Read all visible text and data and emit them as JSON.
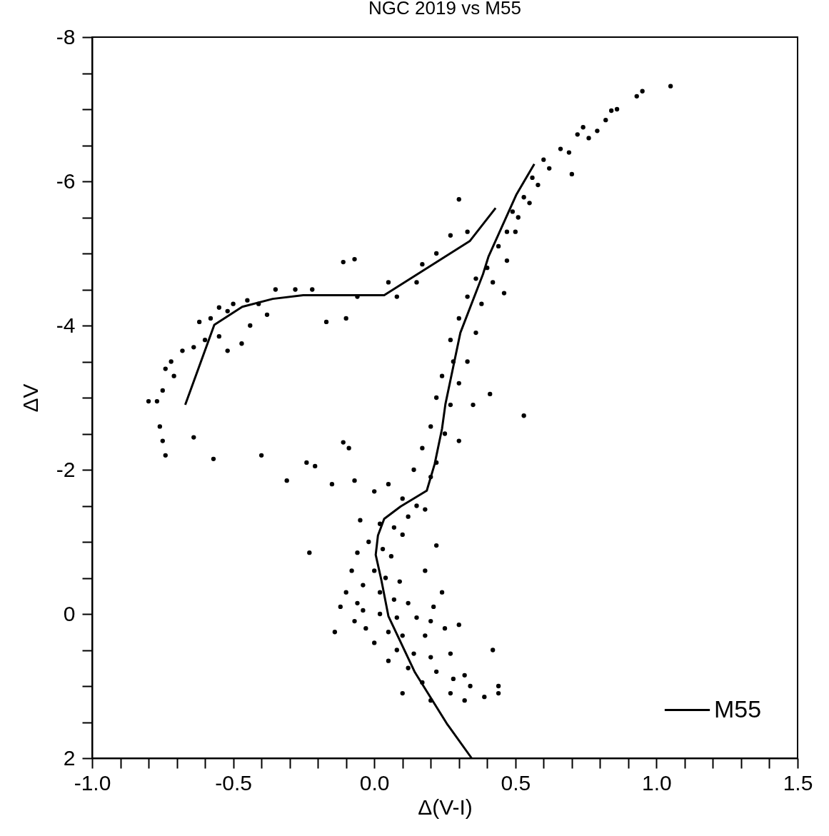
{
  "chart_data": {
    "type": "scatter",
    "title": "NGC 2019 vs M55",
    "xlabel": "Δ(V-I)",
    "ylabel": "ΔV",
    "xlim": [
      -1.0,
      1.5
    ],
    "ylim": [
      2,
      -8
    ],
    "xticks": [
      {
        "value": -1.0,
        "label": "-1.0"
      },
      {
        "value": -0.9,
        "label": null
      },
      {
        "value": -0.8,
        "label": null
      },
      {
        "value": -0.7,
        "label": null
      },
      {
        "value": -0.6,
        "label": null
      },
      {
        "value": -0.5,
        "label": "-0.5"
      },
      {
        "value": -0.4,
        "label": null
      },
      {
        "value": -0.3,
        "label": null
      },
      {
        "value": -0.2,
        "label": null
      },
      {
        "value": -0.1,
        "label": null
      },
      {
        "value": 0,
        "label": "0.0"
      },
      {
        "value": 0.1,
        "label": null
      },
      {
        "value": 0.2,
        "label": null
      },
      {
        "value": 0.3,
        "label": null
      },
      {
        "value": 0.4,
        "label": null
      },
      {
        "value": 0.5,
        "label": "0.5"
      },
      {
        "value": 0.6,
        "label": null
      },
      {
        "value": 0.7,
        "label": null
      },
      {
        "value": 0.8,
        "label": null
      },
      {
        "value": 0.9,
        "label": null
      },
      {
        "value": 1.0,
        "label": "1.0"
      },
      {
        "value": 1.1,
        "label": null
      },
      {
        "value": 1.2,
        "label": null
      },
      {
        "value": 1.3,
        "label": null
      },
      {
        "value": 1.4,
        "label": null
      },
      {
        "value": 1.5,
        "label": "1.5"
      }
    ],
    "yticks": [
      -8,
      {
        "value": -7.5,
        "label": null
      },
      {
        "value": -7,
        "label": null
      },
      {
        "value": -6.5,
        "label": null
      },
      -6,
      {
        "value": -5.5,
        "label": null
      },
      {
        "value": -5,
        "label": null
      },
      {
        "value": -4.5,
        "label": null
      },
      -4,
      {
        "value": -3.5,
        "label": null
      },
      {
        "value": -3,
        "label": null
      },
      {
        "value": -2.5,
        "label": null
      },
      -2,
      {
        "value": -1.5,
        "label": null
      },
      {
        "value": -1,
        "label": null
      },
      {
        "value": -0.5,
        "label": null
      },
      0,
      {
        "value": 0.5,
        "label": null
      },
      {
        "value": 1,
        "label": null
      },
      {
        "value": 1.5,
        "label": null
      },
      2
    ],
    "line_style": "solid",
    "legend": "bottom right",
    "series": [
      {
        "marker": "circle",
        "color": "#000000",
        "x": [
          1.05,
          0.95,
          0.93,
          0.86,
          0.84,
          0.82,
          0.79,
          0.74,
          0.76,
          0.72,
          0.66,
          0.69,
          0.7,
          0.6,
          0.62,
          0.56,
          0.58,
          0.53,
          0.55,
          0.49,
          0.51,
          0.47,
          0.5,
          0.44,
          0.47,
          0.42,
          0.46,
          0.4,
          0.36,
          0.38,
          0.33,
          0.3,
          0.36,
          0.27,
          0.33,
          0.28,
          0.24,
          0.3,
          0.22,
          0.35,
          0.27,
          0.2,
          0.25,
          0.3,
          0.17,
          0.22,
          0.14,
          0.2,
          0.53,
          0.41,
          0.3,
          0.33,
          0.27,
          0.22,
          0.17,
          0.15,
          0.08,
          0.05,
          -0.07,
          -0.11,
          -0.06,
          -0.1,
          -0.17,
          -0.22,
          -0.28,
          -0.35,
          -0.41,
          -0.45,
          -0.38,
          -0.5,
          -0.52,
          -0.55,
          -0.58,
          -0.62,
          -0.6,
          -0.64,
          -0.68,
          -0.72,
          -0.74,
          -0.71,
          -0.75,
          -0.77,
          -0.8,
          -0.76,
          -0.75,
          -0.74,
          -0.64,
          -0.57,
          -0.4,
          -0.52,
          -0.55,
          -0.47,
          -0.44,
          -0.31,
          -0.24,
          -0.21,
          -0.15,
          -0.23,
          -0.11,
          -0.09,
          -0.07,
          0.0,
          0.05,
          0.1,
          0.15,
          0.18,
          0.12,
          -0.05,
          0.02,
          0.07,
          0.1,
          -0.02,
          0.03,
          0.06,
          -0.06,
          -0.08,
          0.0,
          0.04,
          0.09,
          -0.04,
          -0.1,
          0.02,
          0.07,
          0.12,
          -0.12,
          -0.04,
          0.02,
          0.08,
          0.15,
          0.2,
          -0.07,
          -0.03,
          0.05,
          0.1,
          0.18,
          0.25,
          0.3,
          0.0,
          0.08,
          0.14,
          0.2,
          0.27,
          0.05,
          0.12,
          0.22,
          0.28,
          0.32,
          0.34,
          0.17,
          0.1,
          0.2,
          0.27,
          0.32,
          0.42,
          0.44,
          0.44,
          0.39,
          0.21,
          0.24,
          0.18,
          0.22,
          -0.06,
          -0.14
        ],
        "values": [
          -7.32,
          -7.25,
          -7.18,
          -7.0,
          -6.98,
          -6.85,
          -6.7,
          -6.75,
          -6.6,
          -6.65,
          -6.45,
          -6.4,
          -6.1,
          -6.3,
          -6.18,
          -6.05,
          -5.95,
          -5.78,
          -5.7,
          -5.58,
          -5.5,
          -5.3,
          -5.3,
          -5.1,
          -4.9,
          -4.6,
          -4.45,
          -4.8,
          -4.65,
          -4.3,
          -4.4,
          -4.1,
          -3.9,
          -3.8,
          -3.5,
          -3.5,
          -3.3,
          -3.2,
          -3.0,
          -2.9,
          -2.9,
          -2.6,
          -2.5,
          -2.4,
          -2.3,
          -2.1,
          -2.0,
          -1.9,
          -2.75,
          -3.05,
          -5.75,
          -5.3,
          -5.25,
          -5.0,
          -4.85,
          -4.6,
          -4.4,
          -4.6,
          -4.92,
          -4.88,
          -4.4,
          -4.1,
          -4.05,
          -4.5,
          -4.5,
          -4.5,
          -4.3,
          -4.35,
          -4.15,
          -4.3,
          -4.2,
          -4.25,
          -4.1,
          -4.05,
          -3.8,
          -3.7,
          -3.65,
          -3.5,
          -3.4,
          -3.3,
          -3.1,
          -2.95,
          -2.95,
          -2.6,
          -2.4,
          -2.2,
          -2.45,
          -2.15,
          -2.2,
          -3.65,
          -3.85,
          -3.75,
          -4.0,
          -1.85,
          -2.1,
          -2.05,
          -1.8,
          -0.85,
          -2.38,
          -2.3,
          -1.85,
          -1.7,
          -1.8,
          -1.6,
          -1.5,
          -1.45,
          -1.35,
          -1.3,
          -1.25,
          -1.2,
          -1.1,
          -1.0,
          -0.9,
          -0.8,
          -0.85,
          -0.6,
          -0.6,
          -0.5,
          -0.45,
          -0.4,
          -0.3,
          -0.3,
          -0.2,
          -0.15,
          -0.1,
          -0.05,
          0.0,
          0.05,
          0.05,
          0.1,
          0.1,
          0.2,
          0.25,
          0.3,
          0.3,
          0.2,
          0.15,
          0.4,
          0.5,
          0.55,
          0.6,
          0.55,
          0.65,
          0.75,
          0.8,
          0.9,
          0.85,
          1.0,
          0.95,
          1.1,
          1.2,
          1.1,
          1.2,
          0.5,
          1.0,
          1.1,
          1.15,
          -0.1,
          -0.3,
          -0.6,
          -0.95,
          -0.15,
          0.25
        ]
      },
      {
        "type": "line",
        "name": "M55",
        "color": "#000000",
        "x": [
          0.345,
          0.257,
          0.144,
          0.05,
          0.025,
          0.005,
          0.013,
          0.035,
          0.093,
          0.186,
          0.214,
          0.24,
          0.252,
          0.305,
          0.385,
          0.405,
          0.504,
          0.567
        ],
        "values": [
          2.0,
          1.52,
          0.81,
          0.03,
          -0.47,
          -0.82,
          -1.09,
          -1.32,
          -1.49,
          -1.71,
          -2.08,
          -2.57,
          -2.91,
          -3.9,
          -4.71,
          -4.96,
          -5.82,
          -6.24
        ]
      },
      {
        "type": "line",
        "color": "#000000",
        "x": [
          -0.67,
          -0.567,
          -0.468,
          -0.36,
          -0.252,
          0.035,
          0.338,
          0.43
        ],
        "values": [
          -2.9,
          -4.01,
          -4.26,
          -4.37,
          -4.42,
          -4.42,
          -5.17,
          -5.63
        ]
      }
    ]
  }
}
